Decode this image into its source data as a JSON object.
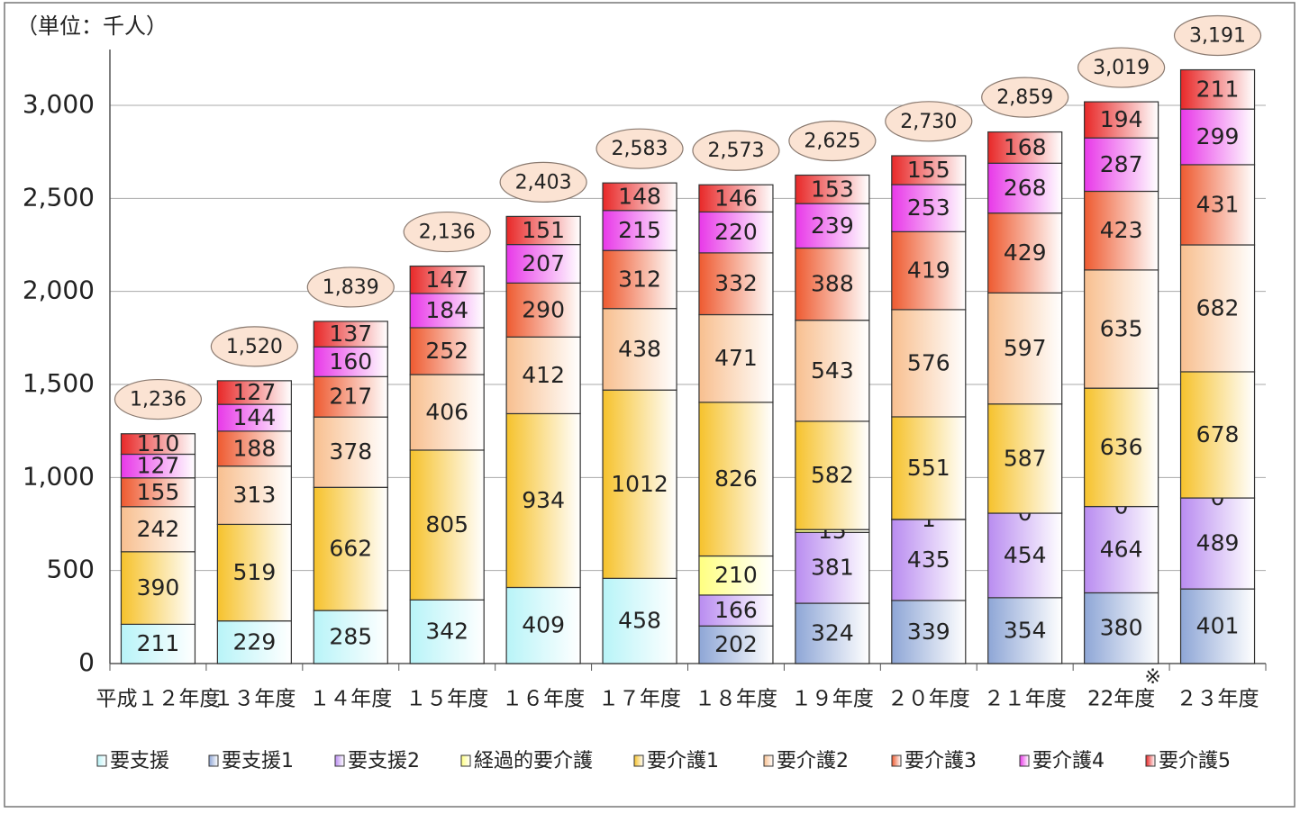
{
  "chart_data": {
    "type": "stacked-bar",
    "unit_label": "（単位：千人）",
    "annotation": "※",
    "categories": [
      "平成１２年度",
      "１３年度",
      "１４年度",
      "１５年度",
      "１６年度",
      "１７年度",
      "１８年度",
      "１９年度",
      "２０年度",
      "２１年度",
      "22年度",
      "２３年度"
    ],
    "series": [
      {
        "name": "要支援",
        "color": "#b8f4f8",
        "values": [
          211,
          229,
          285,
          342,
          409,
          458,
          null,
          null,
          null,
          null,
          null,
          null
        ]
      },
      {
        "name": "要支援1",
        "color": "#8ea6d6",
        "values": [
          null,
          null,
          null,
          null,
          null,
          null,
          202,
          324,
          339,
          354,
          380,
          401
        ]
      },
      {
        "name": "要支援2",
        "color": "#b98cf0",
        "values": [
          null,
          null,
          null,
          null,
          null,
          null,
          166,
          381,
          435,
          454,
          464,
          489
        ]
      },
      {
        "name": "経過的要介護",
        "color": "#ffff80",
        "values": [
          null,
          null,
          null,
          null,
          null,
          null,
          210,
          15,
          1,
          0,
          0,
          0
        ]
      },
      {
        "name": "要介護1",
        "color": "#f6c22c",
        "values": [
          390,
          519,
          662,
          805,
          934,
          1012,
          826,
          582,
          551,
          587,
          636,
          678
        ]
      },
      {
        "name": "要介護2",
        "color": "#f8bf8f",
        "values": [
          242,
          313,
          378,
          406,
          412,
          438,
          471,
          543,
          576,
          597,
          635,
          682
        ]
      },
      {
        "name": "要介護3",
        "color": "#ee5a30",
        "values": [
          155,
          188,
          217,
          252,
          290,
          312,
          332,
          388,
          419,
          429,
          423,
          431
        ]
      },
      {
        "name": "要介護4",
        "color": "#e838e8",
        "values": [
          127,
          144,
          160,
          184,
          207,
          215,
          220,
          239,
          253,
          268,
          287,
          299
        ]
      },
      {
        "name": "要介護5",
        "color": "#e82828",
        "values": [
          110,
          127,
          137,
          147,
          151,
          148,
          146,
          153,
          155,
          168,
          194,
          211
        ]
      }
    ],
    "totals": {
      "values": [
        1236,
        1520,
        1839,
        2136,
        2403,
        2583,
        2573,
        2625,
        2730,
        2859,
        3019,
        3191
      ],
      "value_labels": [
        "1,236",
        "1,520",
        "1,839",
        "2,136",
        "2,403",
        "2,583",
        "2,573",
        "2,625",
        "2,730",
        "2,859",
        "3,019",
        "3,191"
      ]
    },
    "ylim": [
      0,
      3300
    ],
    "yticks": [
      0,
      500,
      {
        "value": 1000,
        "label": "1,000"
      },
      {
        "value": 1500,
        "label": "1,500"
      },
      {
        "value": 2000,
        "label": "2,000"
      },
      {
        "value": 2500,
        "label": "2,500"
      },
      {
        "value": 3000,
        "label": "3,000"
      }
    ],
    "grid": true
  }
}
